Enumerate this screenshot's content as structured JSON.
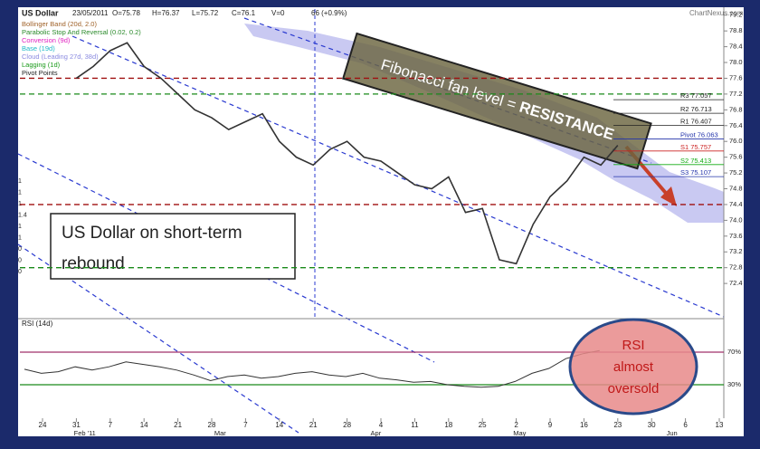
{
  "chart_data": {
    "type": "line",
    "header": [
      "US Dollar",
      "23/05/2011",
      "O=75.78",
      "H=76.37",
      "L=75.72",
      "C=76.1",
      "V=0",
      "66 (+0.9%)"
    ],
    "source": "ChartNexus.com",
    "legend": [
      {
        "name": "Bollinger Band (20d, 2.0)",
        "color": "#a0632a"
      },
      {
        "name": "Parabolic Stop And Reversal (0.02, 0.2)",
        "color": "#2a8a2a"
      },
      {
        "name": "Conversion (9d)",
        "color": "#e020c0"
      },
      {
        "name": "Base (19d)",
        "color": "#20b8c8"
      },
      {
        "name": "Cloud (Leading 27d, 38d)",
        "color": "#8a8ae0"
      },
      {
        "name": "Lagging (1d)",
        "color": "#1a9a1a"
      },
      {
        "name": "Pivot Points",
        "color": "#222222"
      }
    ],
    "categories": [
      "24",
      null,
      "31",
      null,
      "7",
      null,
      "14",
      null,
      "21",
      null,
      "28",
      null,
      "7",
      null,
      "14",
      null,
      "21",
      null,
      "28",
      null,
      "4",
      null,
      "11",
      null,
      "18",
      null,
      "25",
      null,
      "2",
      null,
      "9",
      null,
      "16",
      null,
      "23",
      null,
      "30",
      null,
      "6",
      null,
      "13"
    ],
    "months": [
      {
        "label": "Feb '11",
        "index": 2.5
      },
      {
        "label": "Mar",
        "index": 10.5
      },
      {
        "label": "Apr",
        "index": 19.7
      },
      {
        "label": "May",
        "index": 28.2
      },
      {
        "label": "Jun",
        "index": 37.2
      }
    ],
    "series": [
      {
        "name": "US Dollar",
        "color": "#333333",
        "values": [
          null,
          null,
          77.6,
          77.9,
          78.3,
          78.5,
          77.9,
          77.6,
          77.2,
          76.8,
          76.6,
          76.3,
          76.5,
          76.7,
          76.0,
          75.6,
          75.4,
          75.8,
          76.0,
          75.6,
          75.5,
          75.2,
          74.9,
          74.8,
          75.1,
          74.2,
          74.3,
          73.0,
          72.9,
          73.9,
          74.6,
          75.0,
          75.6,
          75.4,
          75.9,
          null,
          null,
          null,
          null,
          null,
          null
        ]
      }
    ],
    "ylim": [
      71.6,
      79.4
    ],
    "yticks": [
      79.2,
      78.8,
      78.4,
      {
        "value": 78.0,
        "label": "78.0"
      },
      77.6,
      77.2,
      76.8,
      76.4,
      {
        "value": 76.0,
        "label": "76.0"
      },
      75.6,
      75.2,
      74.8,
      74.4,
      {
        "value": 74.0,
        "label": "74.0"
      },
      73.6,
      73.2,
      72.8,
      72.4
    ],
    "left_labels": [
      "1",
      "1",
      "1",
      "1.4",
      "1",
      "1",
      "0",
      "0",
      "0"
    ],
    "pivots": [
      {
        "label": "R3 77.057",
        "value": 77.057,
        "color": "#222222"
      },
      {
        "label": "R2 76.713",
        "value": 76.713,
        "color": "#222222"
      },
      {
        "label": "R1 76.407",
        "value": 76.407,
        "color": "#222222"
      },
      {
        "label": "Pivot 76.063",
        "value": 76.063,
        "color": "#2233aa"
      },
      {
        "label": "S1 75.757",
        "value": 75.757,
        "color": "#cc2222"
      },
      {
        "label": "S2 75.413",
        "value": 75.413,
        "color": "#11aa11"
      },
      {
        "label": "S3 75.107",
        "value": 75.107,
        "color": "#2233aa"
      }
    ],
    "levels": [
      {
        "value": 77.6,
        "color": "#a01010"
      },
      {
        "value": 77.2,
        "color": "#1a8a1a"
      },
      {
        "value": 74.4,
        "color": "#a01010"
      },
      {
        "value": 72.8,
        "color": "#1a8a1a"
      }
    ],
    "annotations": {
      "rebound": [
        "US Dollar on short-term",
        "rebound"
      ],
      "fibonacci": [
        "Fibonacci fan level = ",
        "RESISTANCE"
      ],
      "rsi_note": [
        "RSI",
        "almost",
        "oversold"
      ]
    },
    "rsi": {
      "title": "RSI (14d)",
      "color": "#333333",
      "ylim": [
        0,
        100
      ],
      "yticks": [
        {
          "value": 70,
          "label": "70%"
        },
        {
          "value": 30,
          "label": "30%"
        }
      ],
      "values": [
        49,
        44,
        46,
        52,
        48,
        52,
        58,
        55,
        52,
        48,
        42,
        35,
        40,
        42,
        38,
        40,
        44,
        46,
        42,
        40,
        44,
        38,
        36,
        33,
        34,
        30,
        28,
        27,
        28,
        34,
        44,
        50,
        62,
        68,
        72,
        null,
        null,
        null,
        null,
        null,
        null
      ]
    }
  }
}
